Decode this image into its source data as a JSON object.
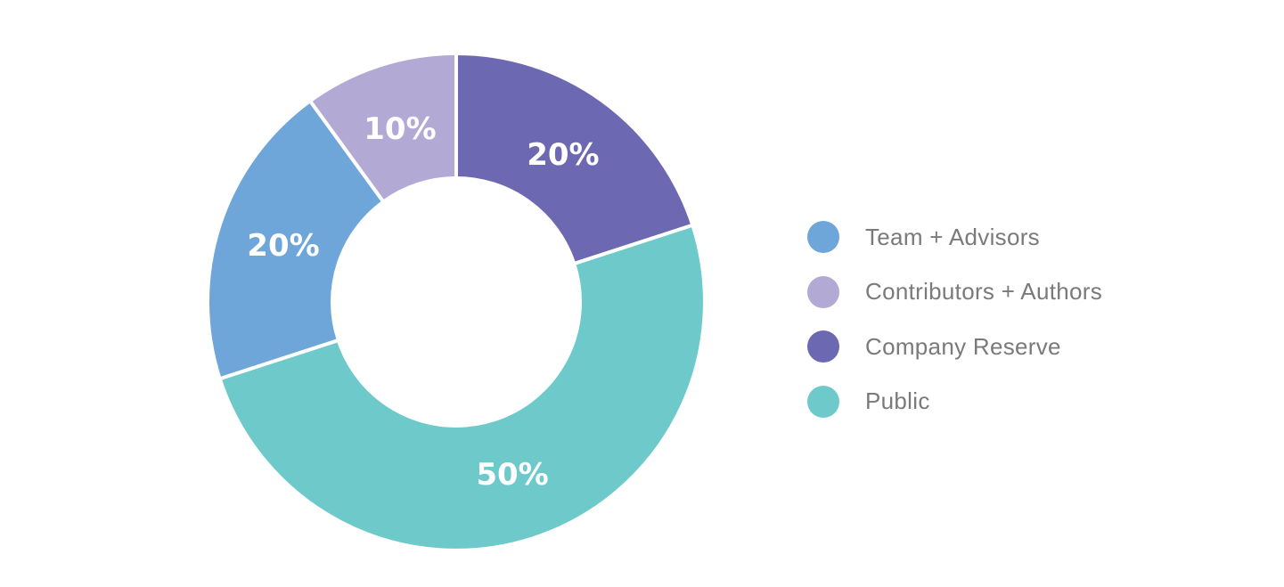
{
  "chart_data": {
    "type": "pie",
    "title": "",
    "donut": true,
    "legend_position": "right",
    "slices": [
      {
        "name": "Company Reserve",
        "value": 20,
        "label": "20%",
        "color": "#6c68b1"
      },
      {
        "name": "Public",
        "value": 50,
        "label": "50%",
        "color": "#6ecaca"
      },
      {
        "name": "Team + Advisors",
        "value": 20,
        "label": "20%",
        "color": "#6fa6d9"
      },
      {
        "name": "Contributors + Authors",
        "value": 10,
        "label": "10%",
        "color": "#b3a9d5"
      }
    ]
  },
  "legend": {
    "items": [
      {
        "label": "Team + Advisors",
        "color": "#6fa6d9"
      },
      {
        "label": "Contributors + Authors",
        "color": "#b3a9d5"
      },
      {
        "label": "Company Reserve",
        "color": "#6c68b1"
      },
      {
        "label": "Public",
        "color": "#6ecaca"
      }
    ]
  }
}
